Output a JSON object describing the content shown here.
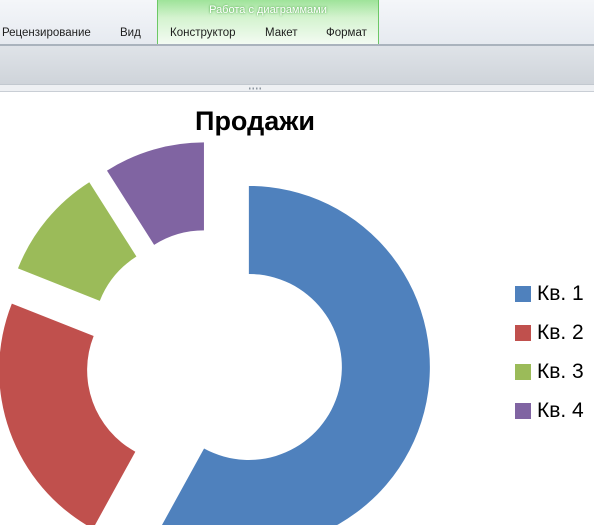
{
  "ribbon": {
    "context_group_title": "Работа с диаграммами",
    "tabs": [
      "Рецензирование",
      "Вид",
      "Конструктор",
      "Макет",
      "Формат"
    ]
  },
  "colors": {
    "context_group": "#c8f0c4",
    "series": [
      "#4f81bd",
      "#c0504d",
      "#9bbb59",
      "#8064a2"
    ]
  },
  "chart_data": {
    "type": "pie",
    "variant": "exploded-doughnut",
    "title": "Продажи",
    "categories": [
      "Кв. 1",
      "Кв. 2",
      "Кв. 3",
      "Кв. 4"
    ],
    "values": [
      58,
      23,
      10,
      9
    ],
    "legend_position": "right"
  }
}
